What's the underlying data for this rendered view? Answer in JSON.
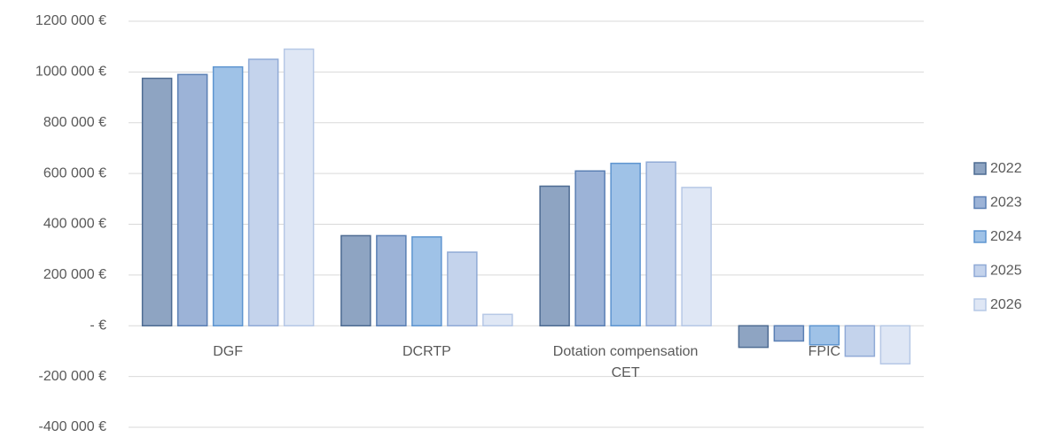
{
  "chart_data": {
    "type": "bar",
    "categories": [
      "DGF",
      "DCRTP",
      "Dotation compensation CET",
      "FPIC"
    ],
    "series": [
      {
        "name": "2022",
        "color": "#8ea4c2",
        "edgecolor": "#4d6b92",
        "values": [
          975000,
          355000,
          550000,
          -85000
        ]
      },
      {
        "name": "2023",
        "color": "#9cb3d7",
        "edgecolor": "#5a7fb4",
        "values": [
          990000,
          355000,
          610000,
          -60000
        ]
      },
      {
        "name": "2024",
        "color": "#9fc2e7",
        "edgecolor": "#5e95d0",
        "values": [
          1020000,
          350000,
          640000,
          -75000
        ]
      },
      {
        "name": "2025",
        "color": "#c4d3ec",
        "edgecolor": "#90aad6",
        "values": [
          1050000,
          290000,
          645000,
          -120000
        ]
      },
      {
        "name": "2026",
        "color": "#dfe7f5",
        "edgecolor": "#b6c8e6",
        "values": [
          1090000,
          45000,
          545000,
          -150000
        ]
      }
    ],
    "ylim": [
      -400000,
      1200000
    ],
    "yticks": [
      {
        "value": -400000,
        "label": "-400 000 €"
      },
      {
        "value": -200000,
        "label": "-200 000 €"
      },
      {
        "value": 0,
        "label": "-  €"
      },
      {
        "value": 200000,
        "label": "200 000 €"
      },
      {
        "value": 400000,
        "label": "400 000 €"
      },
      {
        "value": 600000,
        "label": "600 000 €"
      },
      {
        "value": 800000,
        "label": "800 000 €"
      },
      {
        "value": 1000000,
        "label": "1000 000 €"
      },
      {
        "value": 1200000,
        "label": "1200 000 €"
      }
    ],
    "grid": true,
    "legend": "right"
  }
}
